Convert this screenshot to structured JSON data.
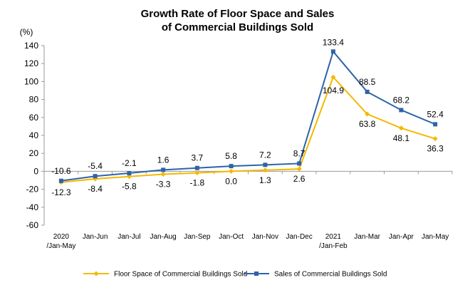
{
  "chart_data": {
    "type": "line",
    "title_line1": "Growth Rate of Floor Space and Sales",
    "title_line2": "of Commercial Buildings Sold",
    "y_unit": "(%)",
    "ylim": [
      -60,
      140
    ],
    "yticks": [
      140,
      120,
      100,
      80,
      60,
      40,
      20,
      0,
      -20,
      -40,
      -60
    ],
    "categories": [
      [
        "2020",
        "/Jan-May"
      ],
      [
        "Jan-Jun"
      ],
      [
        "Jan-Jul"
      ],
      [
        "Jan-Aug"
      ],
      [
        "Jan-Sep"
      ],
      [
        "Jan-Oct"
      ],
      [
        "Jan-Nov"
      ],
      [
        "Jan-Dec"
      ],
      [
        "2021",
        "/Jan-Feb"
      ],
      [
        "Jan-Mar"
      ],
      [
        "Jan-Apr"
      ],
      [
        "Jan-May"
      ]
    ],
    "series": [
      {
        "name": "Floor Space of Commercial Buildings Sold",
        "color": "#F5B800",
        "marker": "diamond",
        "values": [
          -12.3,
          -8.4,
          -5.8,
          -3.3,
          -1.8,
          0.0,
          1.3,
          2.6,
          104.9,
          63.8,
          48.1,
          36.3
        ],
        "labels": [
          "-12.3",
          "-8.4",
          "-5.8",
          "-3.3",
          "-1.8",
          "0.0",
          "1.3",
          "2.6",
          "104.9",
          "63.8",
          "48.1",
          "36.3"
        ]
      },
      {
        "name": "Sales of Commercial Buildings Sold",
        "color": "#2E63A8",
        "marker": "square",
        "values": [
          -10.6,
          -5.4,
          -2.1,
          1.6,
          3.7,
          5.8,
          7.2,
          8.7,
          133.4,
          88.5,
          68.2,
          52.4
        ],
        "labels": [
          "-10.6",
          "-5.4",
          "-2.1",
          "1.6",
          "3.7",
          "5.8",
          "7.2",
          "8.7",
          "133.4",
          "88.5",
          "68.2",
          "52.4"
        ]
      }
    ],
    "legend_position": "bottom",
    "grid": false
  }
}
